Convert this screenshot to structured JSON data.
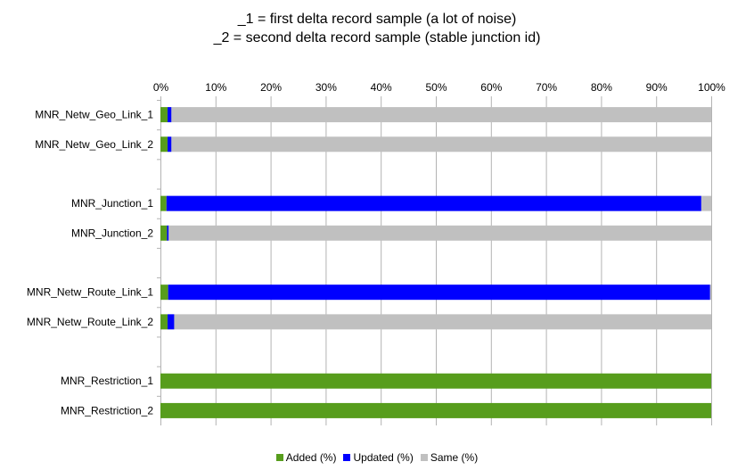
{
  "chart_data": {
    "type": "bar",
    "orientation": "horizontal",
    "stacked": "percent",
    "title": "_1 = first delta record sample (a lot of noise)",
    "subtitle": "_2 = second delta record sample (stable junction id)",
    "xlabel": "",
    "ylabel": "",
    "xlim": [
      0,
      100
    ],
    "x_ticks": [
      "0%",
      "10%",
      "20%",
      "30%",
      "40%",
      "50%",
      "60%",
      "70%",
      "80%",
      "90%",
      "100%"
    ],
    "grid": "vertical",
    "legend_position": "bottom",
    "categories": [
      "MNR_Netw_Geo_Link_1",
      "MNR_Netw_Geo_Link_2",
      "",
      "MNR_Junction_1",
      "MNR_Junction_2",
      "",
      "MNR_Netw_Route_Link_1",
      "MNR_Netw_Route_Link_2",
      "",
      "MNR_Restriction_1",
      "MNR_Restriction_2"
    ],
    "series": [
      {
        "name": "Added (%)",
        "color": "#579d1c",
        "values": [
          1.3,
          1.3,
          null,
          1.1,
          1.2,
          null,
          1.4,
          1.3,
          null,
          100,
          100
        ]
      },
      {
        "name": "Updated (%)",
        "color": "#0000ff",
        "values": [
          0.7,
          0.7,
          null,
          97.1,
          0.3,
          null,
          98.4,
          1.2,
          null,
          0,
          0
        ]
      },
      {
        "name": "Same (%)",
        "color": "#c0c0c0",
        "values": [
          98.0,
          98.0,
          null,
          1.8,
          98.5,
          null,
          0.2,
          97.5,
          null,
          0,
          0
        ]
      }
    ]
  }
}
